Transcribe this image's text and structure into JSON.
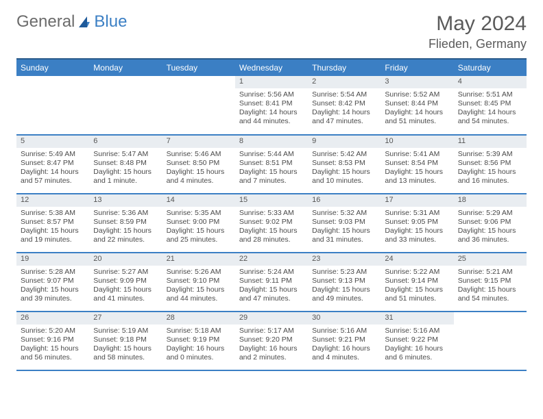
{
  "logo": {
    "text1": "General",
    "text2": "Blue"
  },
  "title": "May 2024",
  "location": "Flieden, Germany",
  "colors": {
    "header_bg": "#3b7fc4",
    "header_border": "#2a5a8a",
    "row_border": "#3b7fc4",
    "daynum_bg": "#e9edf1",
    "text": "#4a4a4a",
    "title_text": "#5a5a5a"
  },
  "weekdays": [
    "Sunday",
    "Monday",
    "Tuesday",
    "Wednesday",
    "Thursday",
    "Friday",
    "Saturday"
  ],
  "weeks": [
    [
      {
        "empty": true
      },
      {
        "empty": true
      },
      {
        "empty": true
      },
      {
        "n": "1",
        "sr": "5:56 AM",
        "ss": "8:41 PM",
        "dl": "14 hours and 44 minutes."
      },
      {
        "n": "2",
        "sr": "5:54 AM",
        "ss": "8:42 PM",
        "dl": "14 hours and 47 minutes."
      },
      {
        "n": "3",
        "sr": "5:52 AM",
        "ss": "8:44 PM",
        "dl": "14 hours and 51 minutes."
      },
      {
        "n": "4",
        "sr": "5:51 AM",
        "ss": "8:45 PM",
        "dl": "14 hours and 54 minutes."
      }
    ],
    [
      {
        "n": "5",
        "sr": "5:49 AM",
        "ss": "8:47 PM",
        "dl": "14 hours and 57 minutes."
      },
      {
        "n": "6",
        "sr": "5:47 AM",
        "ss": "8:48 PM",
        "dl": "15 hours and 1 minute."
      },
      {
        "n": "7",
        "sr": "5:46 AM",
        "ss": "8:50 PM",
        "dl": "15 hours and 4 minutes."
      },
      {
        "n": "8",
        "sr": "5:44 AM",
        "ss": "8:51 PM",
        "dl": "15 hours and 7 minutes."
      },
      {
        "n": "9",
        "sr": "5:42 AM",
        "ss": "8:53 PM",
        "dl": "15 hours and 10 minutes."
      },
      {
        "n": "10",
        "sr": "5:41 AM",
        "ss": "8:54 PM",
        "dl": "15 hours and 13 minutes."
      },
      {
        "n": "11",
        "sr": "5:39 AM",
        "ss": "8:56 PM",
        "dl": "15 hours and 16 minutes."
      }
    ],
    [
      {
        "n": "12",
        "sr": "5:38 AM",
        "ss": "8:57 PM",
        "dl": "15 hours and 19 minutes."
      },
      {
        "n": "13",
        "sr": "5:36 AM",
        "ss": "8:59 PM",
        "dl": "15 hours and 22 minutes."
      },
      {
        "n": "14",
        "sr": "5:35 AM",
        "ss": "9:00 PM",
        "dl": "15 hours and 25 minutes."
      },
      {
        "n": "15",
        "sr": "5:33 AM",
        "ss": "9:02 PM",
        "dl": "15 hours and 28 minutes."
      },
      {
        "n": "16",
        "sr": "5:32 AM",
        "ss": "9:03 PM",
        "dl": "15 hours and 31 minutes."
      },
      {
        "n": "17",
        "sr": "5:31 AM",
        "ss": "9:05 PM",
        "dl": "15 hours and 33 minutes."
      },
      {
        "n": "18",
        "sr": "5:29 AM",
        "ss": "9:06 PM",
        "dl": "15 hours and 36 minutes."
      }
    ],
    [
      {
        "n": "19",
        "sr": "5:28 AM",
        "ss": "9:07 PM",
        "dl": "15 hours and 39 minutes."
      },
      {
        "n": "20",
        "sr": "5:27 AM",
        "ss": "9:09 PM",
        "dl": "15 hours and 41 minutes."
      },
      {
        "n": "21",
        "sr": "5:26 AM",
        "ss": "9:10 PM",
        "dl": "15 hours and 44 minutes."
      },
      {
        "n": "22",
        "sr": "5:24 AM",
        "ss": "9:11 PM",
        "dl": "15 hours and 47 minutes."
      },
      {
        "n": "23",
        "sr": "5:23 AM",
        "ss": "9:13 PM",
        "dl": "15 hours and 49 minutes."
      },
      {
        "n": "24",
        "sr": "5:22 AM",
        "ss": "9:14 PM",
        "dl": "15 hours and 51 minutes."
      },
      {
        "n": "25",
        "sr": "5:21 AM",
        "ss": "9:15 PM",
        "dl": "15 hours and 54 minutes."
      }
    ],
    [
      {
        "n": "26",
        "sr": "5:20 AM",
        "ss": "9:16 PM",
        "dl": "15 hours and 56 minutes."
      },
      {
        "n": "27",
        "sr": "5:19 AM",
        "ss": "9:18 PM",
        "dl": "15 hours and 58 minutes."
      },
      {
        "n": "28",
        "sr": "5:18 AM",
        "ss": "9:19 PM",
        "dl": "16 hours and 0 minutes."
      },
      {
        "n": "29",
        "sr": "5:17 AM",
        "ss": "9:20 PM",
        "dl": "16 hours and 2 minutes."
      },
      {
        "n": "30",
        "sr": "5:16 AM",
        "ss": "9:21 PM",
        "dl": "16 hours and 4 minutes."
      },
      {
        "n": "31",
        "sr": "5:16 AM",
        "ss": "9:22 PM",
        "dl": "16 hours and 6 minutes."
      },
      {
        "empty": true
      }
    ]
  ],
  "labels": {
    "sunrise": "Sunrise: ",
    "sunset": "Sunset: ",
    "daylight": "Daylight: "
  }
}
